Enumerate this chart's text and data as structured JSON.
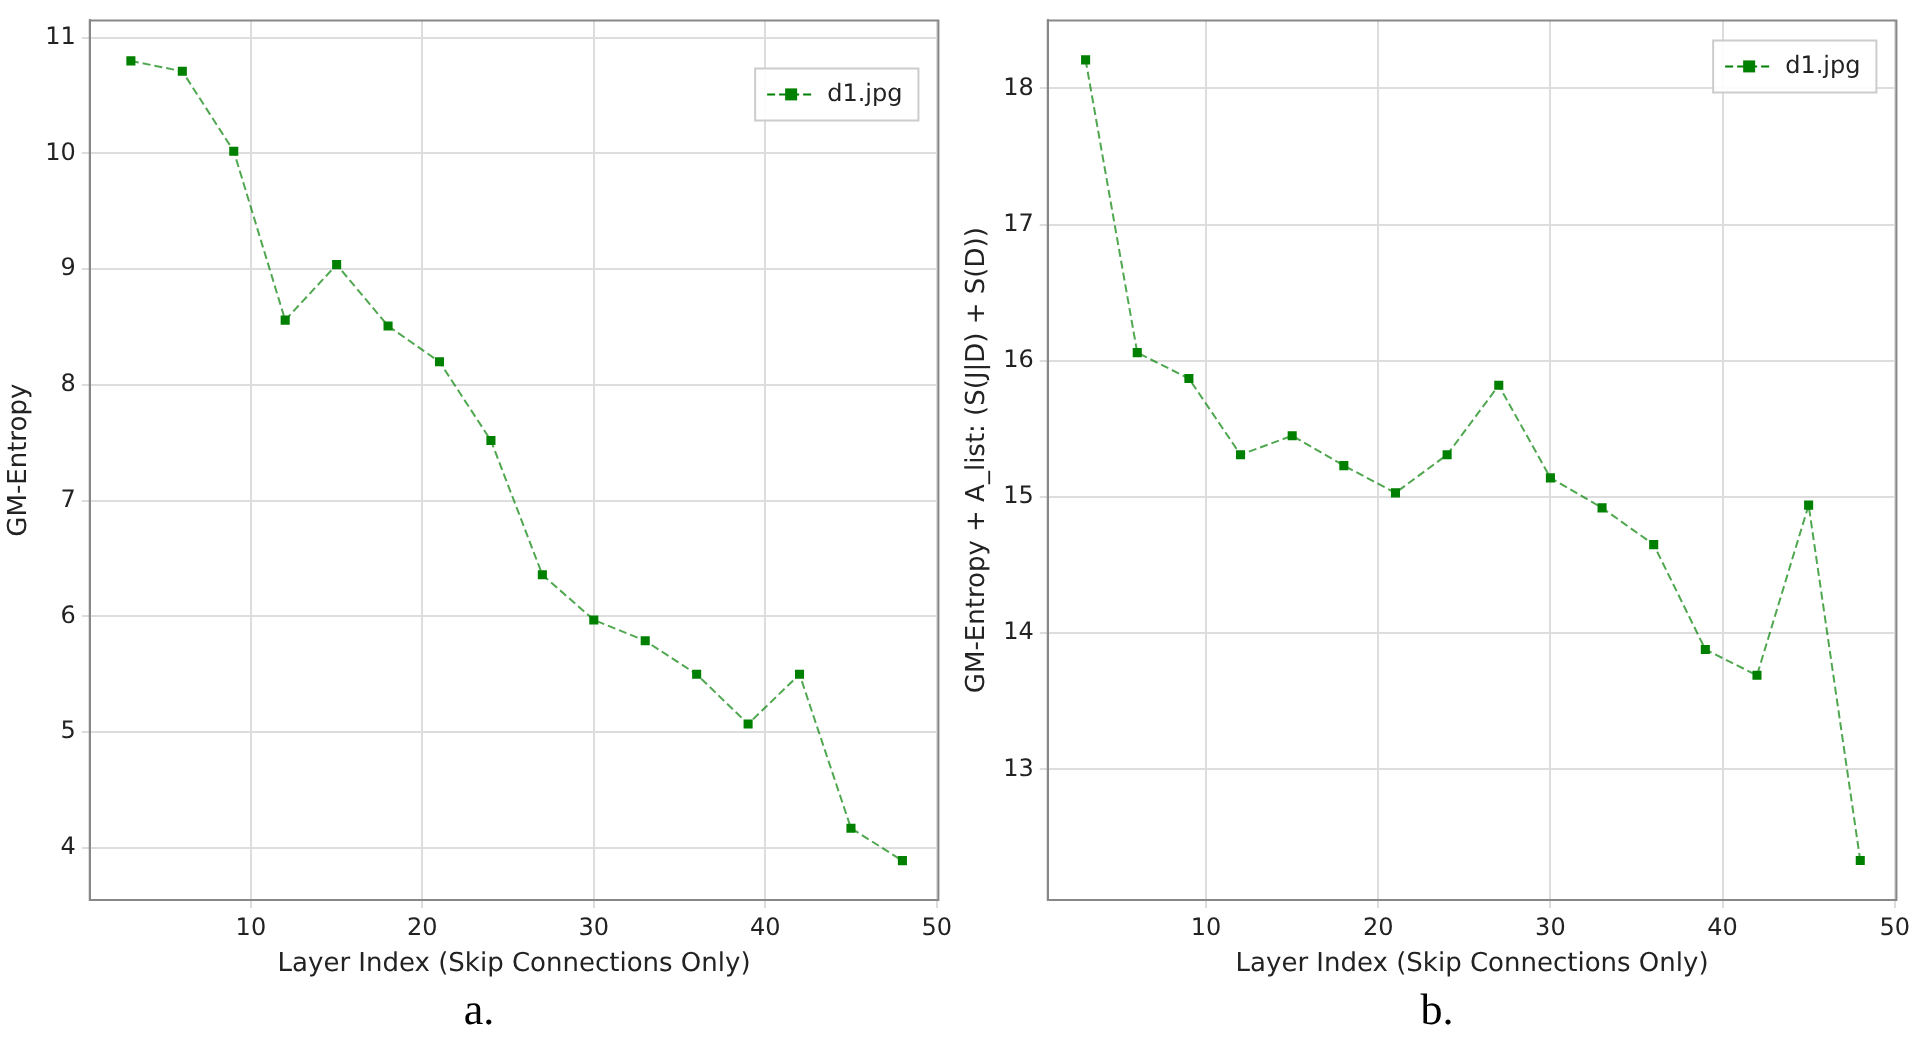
{
  "chart_data": [
    {
      "type": "line",
      "xlabel": "Layer Index (Skip Connections Only)",
      "ylabel": "GM-Entropy",
      "x": [
        3,
        6,
        9,
        12,
        15,
        18,
        21,
        24,
        27,
        30,
        33,
        36,
        39,
        42,
        45,
        48
      ],
      "series": [
        {
          "name": "d1.jpg",
          "color": "#008000",
          "values": [
            10.8,
            10.71,
            10.02,
            8.56,
            9.04,
            8.51,
            8.2,
            7.52,
            6.36,
            5.97,
            5.79,
            5.5,
            5.07,
            5.5,
            4.17,
            3.89
          ]
        }
      ],
      "xlim": [
        0.6,
        50.1
      ],
      "xticks": [
        10,
        20,
        30,
        40,
        50
      ],
      "ylim": [
        3.55,
        11.15
      ],
      "yticks": [
        4,
        5,
        6,
        7,
        8,
        9,
        10,
        11
      ],
      "grid": true,
      "legend": "top right",
      "marker": "square",
      "line_style": "dashed",
      "annotations": [
        "a."
      ]
    },
    {
      "type": "line",
      "xlabel": "Layer Index (Skip Connections Only)",
      "ylabel": "GM-Entropy + A_list: (S(J|D) + S(D))",
      "x": [
        3,
        6,
        9,
        12,
        15,
        18,
        21,
        24,
        27,
        30,
        33,
        36,
        39,
        42,
        45,
        48
      ],
      "series": [
        {
          "name": "d1.jpg",
          "color": "#008000",
          "values": [
            18.21,
            16.06,
            15.87,
            15.31,
            15.45,
            15.23,
            15.03,
            15.31,
            15.82,
            15.14,
            14.92,
            14.65,
            13.88,
            13.69,
            14.94,
            12.33
          ]
        }
      ],
      "xlim": [
        0.8,
        50.1
      ],
      "xticks": [
        10,
        20,
        30,
        40,
        50
      ],
      "ylim": [
        12.04,
        18.5
      ],
      "yticks": [
        13,
        14,
        15,
        16,
        17,
        18
      ],
      "grid": true,
      "legend": "top right",
      "marker": "square",
      "line_style": "dashed",
      "annotations": [
        "b."
      ]
    }
  ]
}
